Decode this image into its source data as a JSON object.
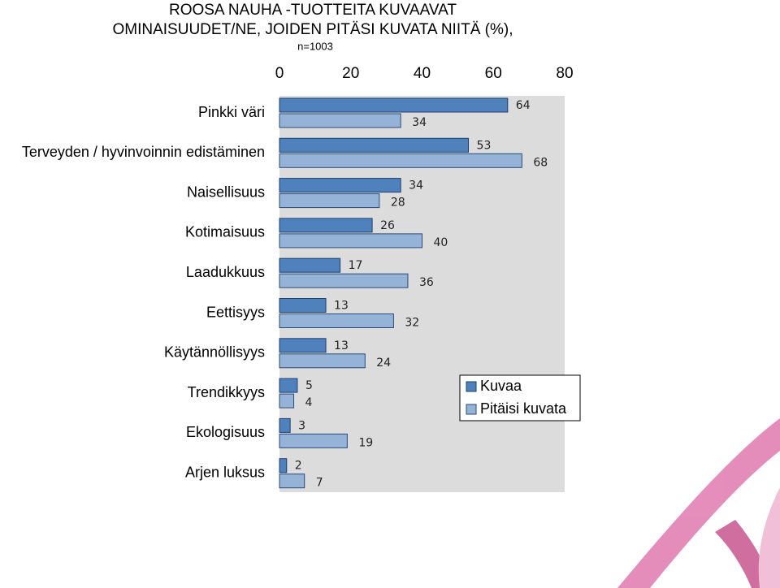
{
  "chart_data": {
    "type": "bar",
    "orientation": "horizontal",
    "title": [
      "ROOSA NAUHA -TUOTTEITA KUVAAVAT",
      "OMINAISUUDET/NE, JOIDEN PITÄSI KUVATA NIITÄ (%),"
    ],
    "subtitle": "n=1003",
    "categories": [
      "Pinkki väri",
      "Terveyden / hyvinvoinnin edistäminen",
      "Naisellisuus",
      "Kotimaisuus",
      "Laadukkuus",
      "Eettisyys",
      "Käytännöllisyys",
      "Trendikkyys",
      "Ekologisuus",
      "Arjen luksus"
    ],
    "series": [
      {
        "name": "Kuvaa",
        "color": "#4f81bd",
        "values": [
          64,
          53,
          34,
          26,
          17,
          13,
          13,
          5,
          3,
          2
        ]
      },
      {
        "name": "Pitäisi kuvata",
        "color": "#95b3d7",
        "values": [
          34,
          68,
          28,
          40,
          36,
          32,
          24,
          4,
          19,
          7
        ]
      }
    ],
    "xlim": [
      0,
      80
    ],
    "xticks": [
      0,
      20,
      40,
      60,
      80
    ],
    "grid": false,
    "legend": "right"
  }
}
